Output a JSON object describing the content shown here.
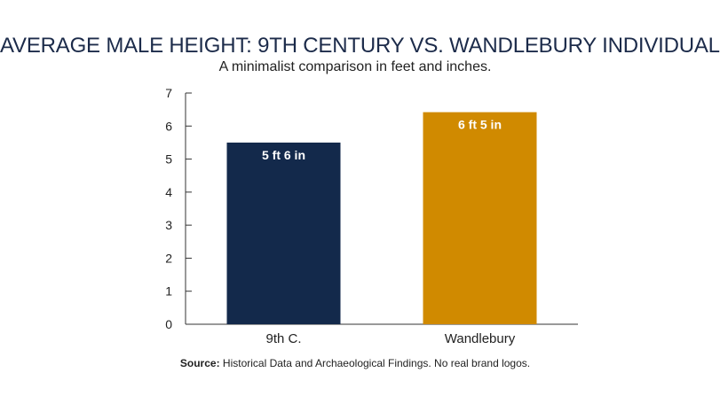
{
  "chart_data": {
    "type": "bar",
    "title": "AVERAGE MALE HEIGHT: 9TH CENTURY VS. WANDLEBURY INDIVIDUAL",
    "subtitle": "A minimalist comparison in feet and inches.",
    "categories": [
      "9th C.",
      "Wandlebury"
    ],
    "values": [
      5.5,
      6.42
    ],
    "data_labels": [
      "5 ft 6 in",
      "6 ft 5 in"
    ],
    "colors": [
      "#13294b",
      "#d08a00"
    ],
    "xlabel": "",
    "ylabel": "",
    "ylim": [
      0,
      7
    ],
    "yticks": [
      0,
      1,
      2,
      3,
      4,
      5,
      6,
      7
    ],
    "grid": false,
    "legend": "none"
  },
  "footer": {
    "source_label": "Source:",
    "source_text": " Historical Data and Archaeological Findings. No real brand logos."
  }
}
